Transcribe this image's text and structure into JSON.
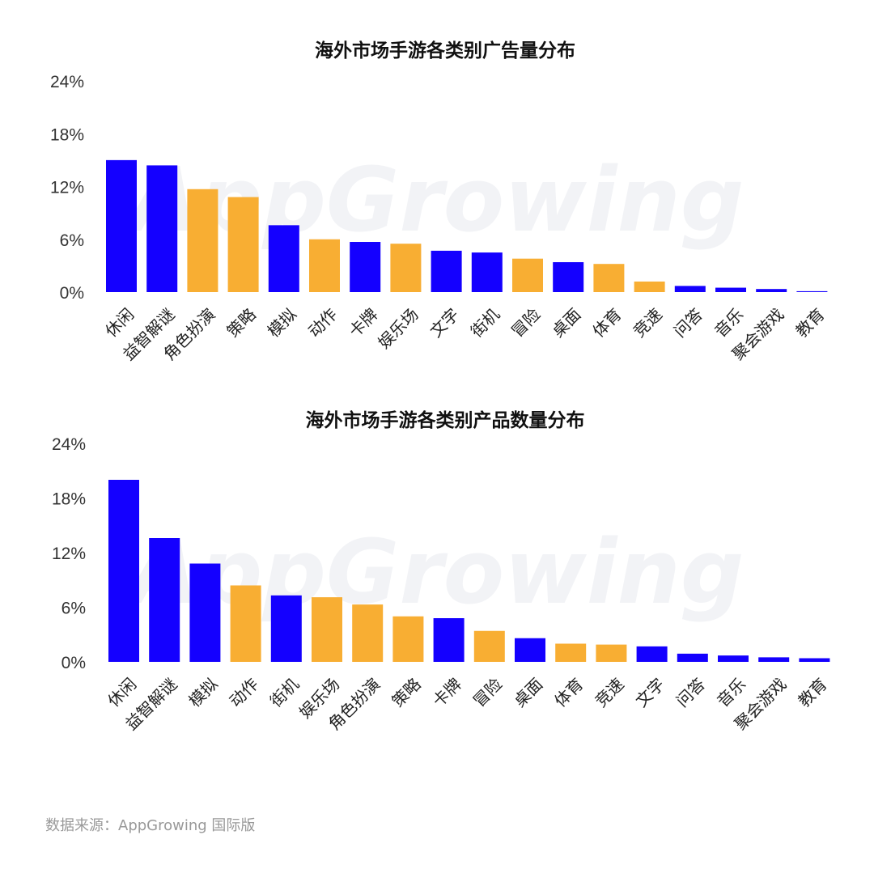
{
  "chart_data": [
    {
      "type": "bar",
      "title": "海外市场手游各类别广告量分布",
      "yticks": [
        "0%",
        "6%",
        "12%",
        "18%",
        "24%"
      ],
      "ylim": [
        0,
        24
      ],
      "categories": [
        "休闲",
        "益智解谜",
        "角色扮演",
        "策略",
        "模拟",
        "动作",
        "卡牌",
        "娱乐场",
        "文字",
        "街机",
        "冒险",
        "桌面",
        "体育",
        "竞速",
        "问答",
        "音乐",
        "聚会游戏",
        "教育"
      ],
      "values": [
        15.0,
        14.4,
        11.7,
        10.8,
        7.6,
        6.0,
        5.7,
        5.5,
        4.7,
        4.5,
        3.8,
        3.4,
        3.2,
        1.2,
        0.7,
        0.5,
        0.35,
        0.1
      ],
      "colors": [
        "#1400ff",
        "#1400ff",
        "#f8ae33",
        "#f8ae33",
        "#1400ff",
        "#f8ae33",
        "#1400ff",
        "#f8ae33",
        "#1400ff",
        "#1400ff",
        "#f8ae33",
        "#1400ff",
        "#f8ae33",
        "#f8ae33",
        "#1400ff",
        "#1400ff",
        "#1400ff",
        "#1400ff"
      ],
      "xlabel": "",
      "ylabel": ""
    },
    {
      "type": "bar",
      "title": "海外市场手游各类别产品数量分布",
      "yticks": [
        "0%",
        "6%",
        "12%",
        "18%",
        "24%"
      ],
      "ylim": [
        0,
        24
      ],
      "categories": [
        "休闲",
        "益智解谜",
        "模拟",
        "动作",
        "街机",
        "娱乐场",
        "角色扮演",
        "策略",
        "卡牌",
        "冒险",
        "桌面",
        "体育",
        "竞速",
        "文字",
        "问答",
        "音乐",
        "聚会游戏",
        "教育"
      ],
      "values": [
        20.0,
        13.6,
        10.8,
        8.4,
        7.3,
        7.1,
        6.3,
        5.0,
        4.8,
        3.4,
        2.6,
        2.0,
        1.9,
        1.7,
        0.9,
        0.7,
        0.5,
        0.4
      ],
      "colors": [
        "#1400ff",
        "#1400ff",
        "#1400ff",
        "#f8ae33",
        "#1400ff",
        "#f8ae33",
        "#f8ae33",
        "#f8ae33",
        "#1400ff",
        "#f8ae33",
        "#1400ff",
        "#f8ae33",
        "#f8ae33",
        "#1400ff",
        "#1400ff",
        "#1400ff",
        "#1400ff",
        "#1400ff"
      ],
      "xlabel": "",
      "ylabel": ""
    }
  ],
  "watermark": "AppGrowing",
  "source": "数据来源：AppGrowing 国际版"
}
